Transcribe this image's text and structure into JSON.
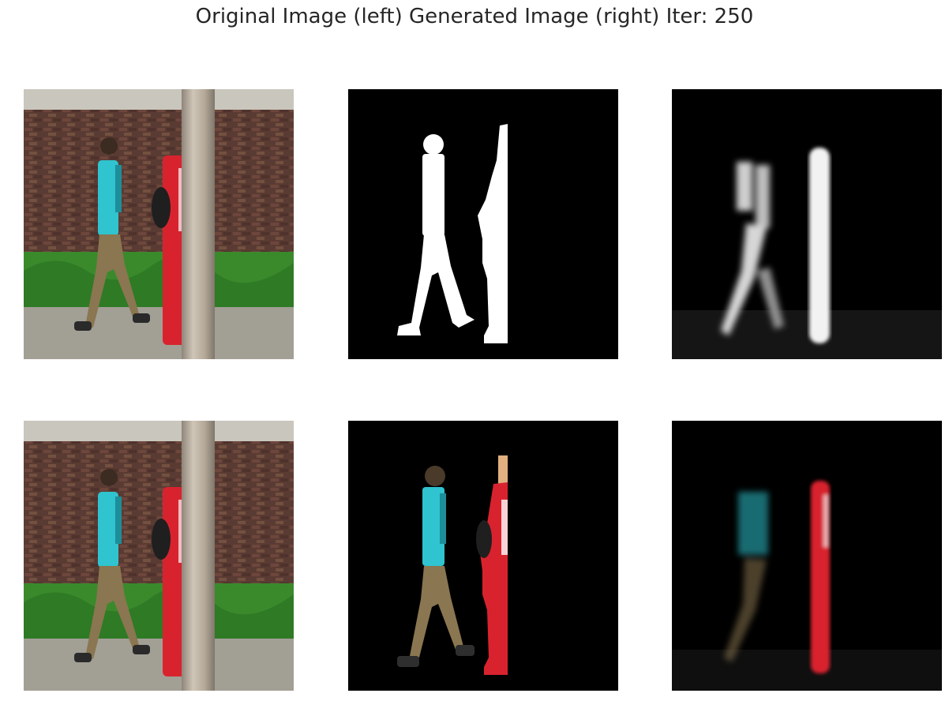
{
  "figure": {
    "title": "Original Image (left) Generated Image (right) Iter: 250"
  },
  "panels": [
    {
      "row": 1,
      "col": 1,
      "content": "original-photo-two-people-walking-by-tree",
      "mode": "photo"
    },
    {
      "row": 1,
      "col": 2,
      "content": "ground-truth-binary-mask",
      "mode": "mask"
    },
    {
      "row": 1,
      "col": 3,
      "content": "generated-soft-mask",
      "mode": "blurmask"
    },
    {
      "row": 2,
      "col": 1,
      "content": "original-photo-two-people-walking-by-tree",
      "mode": "photo"
    },
    {
      "row": 2,
      "col": 2,
      "content": "ground-truth-masked-photo",
      "mode": "cutout"
    },
    {
      "row": 2,
      "col": 3,
      "content": "generated-masked-photo",
      "mode": "blurcutout"
    }
  ],
  "colors": {
    "shirt": "#2fc4cf",
    "shorts": "#8a7650",
    "red_outfit": "#d8232f",
    "brick_wall": "#5a3b33",
    "shrubs": "#3a8a2c",
    "tree_bark": "#b8ab9a",
    "pavement": "#9a968c",
    "background_black": "#000000",
    "mask_white": "#ffffff"
  },
  "icons": {
    "pedestrian_left": "person-walking-icon",
    "pedestrian_right": "person-walking-icon"
  }
}
